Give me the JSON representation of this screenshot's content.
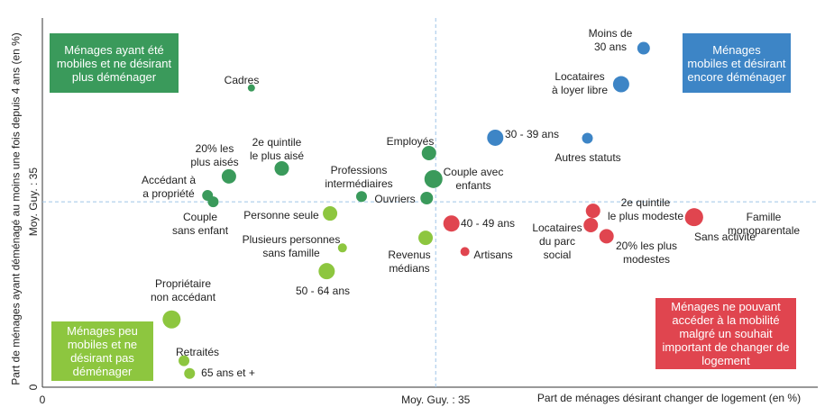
{
  "chart_data": {
    "type": "scatter",
    "xlabel": "Part de ménages désirant changer de logement (en %)",
    "ylabel": "Part de ménages ayant déménagé au moins une fois depuis 4 ans (en %)",
    "xlim": [
      0,
      69
    ],
    "ylim": [
      0,
      68
    ],
    "xticks": [
      0,
      {
        "value": 35,
        "label": "Moy. Guy. : 35"
      }
    ],
    "yticks": [
      0,
      {
        "value": 35,
        "label": "Moy. Guy. : 35"
      }
    ],
    "series": [
      {
        "name": "Ménages ayant été\nmobiles et ne désirant\nplus déménager",
        "color": "#3a9a5b",
        "labels": [
          "Cadres",
          "20% les\nplus aisés",
          "2e quintile\nle plus aisé",
          "Accédant à\na propriété",
          "Couple\nsans enfant",
          "Employés",
          "Couple avec\nenfants",
          "Professions\nintermédiaires",
          "Ouvriers"
        ],
        "x": [
          18.6,
          16.6,
          21.3,
          14.7,
          15.2,
          34.4,
          34.8,
          28.4,
          34.2
        ],
        "values": [
          56.5,
          39.8,
          41.3,
          36.2,
          35.0,
          44.2,
          39.3,
          36.0,
          35.7
        ],
        "sizes": [
          4,
          8,
          8,
          6,
          6,
          8,
          10,
          6,
          7
        ]
      },
      {
        "name": "Ménages peu\nmobiles et ne\ndésirant pas\ndéménager",
        "color": "#8dc63f",
        "labels": [
          "Personne seule",
          "Plusieurs personnes\nsans famille",
          "50 - 64 ans",
          "Revenus\nmédians",
          "Propriétaire\nnon accédant",
          "Retraités",
          "65 ans et +"
        ],
        "x": [
          25.6,
          26.7,
          25.3,
          34.1,
          11.5,
          12.6,
          13.1
        ],
        "values": [
          32.8,
          26.3,
          21.9,
          28.2,
          12.8,
          5.0,
          2.6
        ],
        "sizes": [
          8,
          5,
          9,
          8,
          10,
          6,
          6
        ]
      },
      {
        "name": "Ménages\nmobiles et désirant\nencore déménager",
        "color": "#3d85c6",
        "labels": [
          "Moins de\n30 ans",
          "Locataires\nà loyer libre",
          "30 - 39 ans",
          "Autres statuts"
        ],
        "x": [
          53.5,
          51.5,
          40.3,
          48.5
        ],
        "values": [
          64.0,
          57.2,
          47.1,
          47.0
        ],
        "sizes": [
          7,
          9,
          9,
          6
        ]
      },
      {
        "name": "Ménages ne pouvant\naccéder à la mobilité\nmalgré un souhait\nimportant de changer de\nlogement",
        "color": "#e0454f",
        "labels": [
          "40 - 49 ans",
          "Artisans",
          "2e quintile\nle plus modeste",
          "Locataires\ndu parc\nsocial",
          "20% les plus\nmodestes",
          "Famille monoparentale",
          "Sans activité"
        ],
        "x": [
          36.4,
          37.6,
          49.0,
          48.8,
          50.2,
          58.0,
          57.9
        ],
        "values": [
          30.9,
          25.6,
          33.3,
          30.6,
          28.5,
          32.1,
          32.0
        ],
        "sizes": [
          9,
          5,
          8,
          8,
          8,
          10,
          9
        ]
      }
    ]
  }
}
